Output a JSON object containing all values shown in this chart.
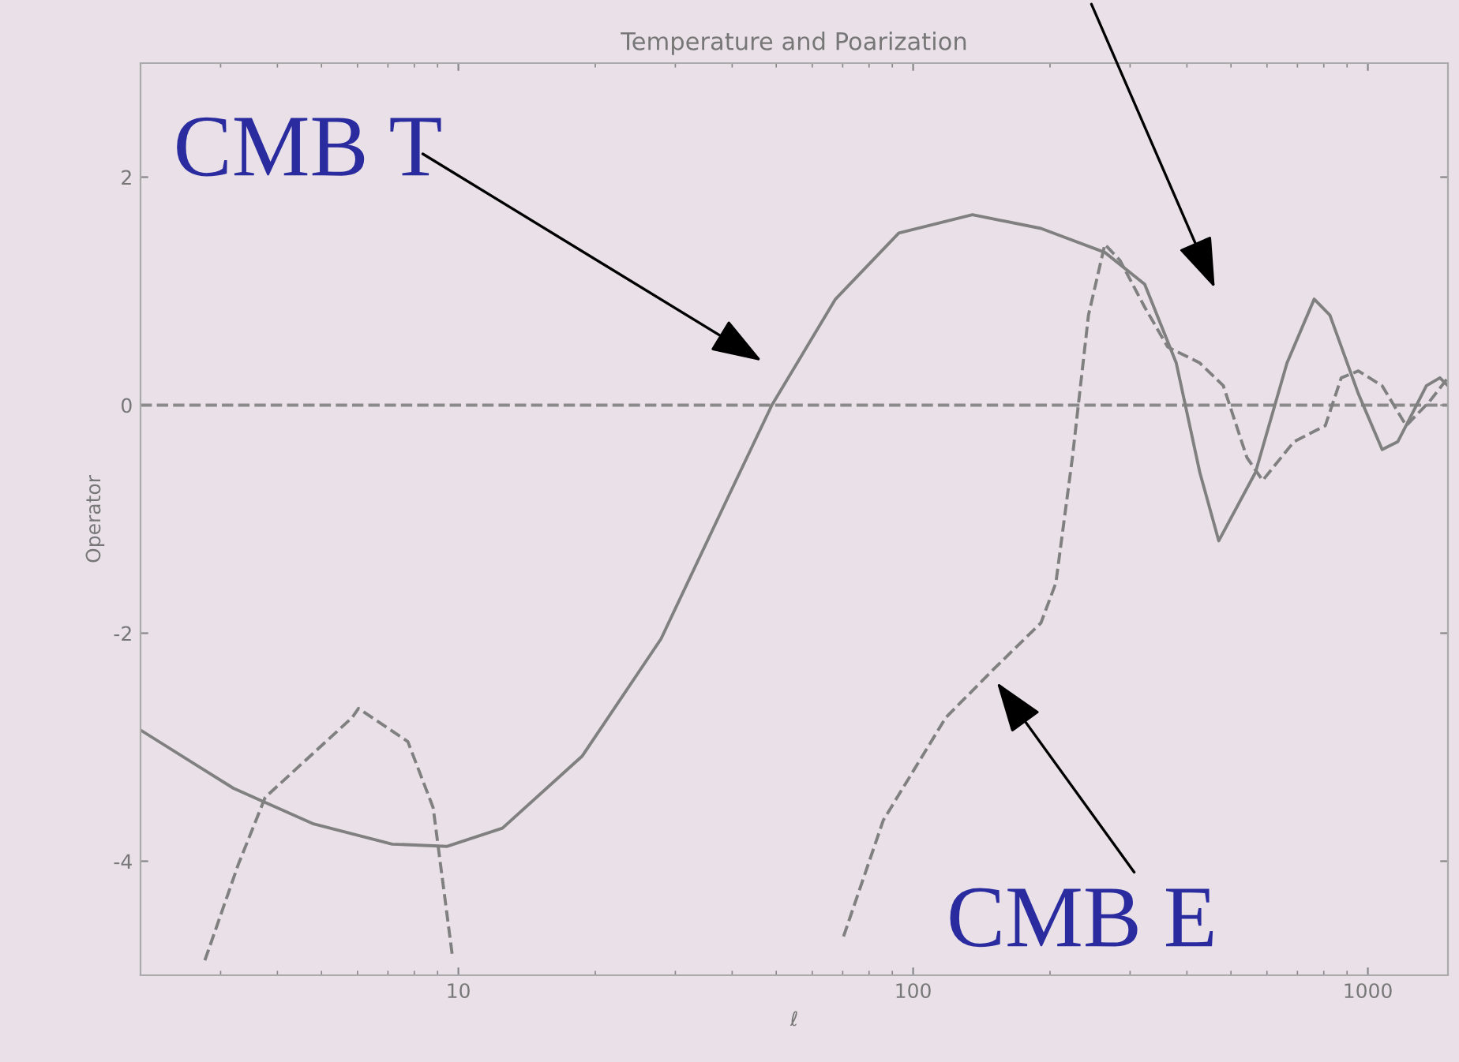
{
  "chart_data": {
    "type": "line",
    "title": "Temperature and Poarization",
    "xlabel": "ℓ",
    "ylabel": "Operator",
    "log": "x",
    "xlim": [
      2,
      1500
    ],
    "xticks": [
      10,
      100,
      1000
    ],
    "ylim": [
      -5,
      3
    ],
    "yticks": [
      -4,
      -2,
      0,
      2
    ],
    "grid": false,
    "legend": false,
    "marker": "none",
    "ref_lines": [
      {
        "axis": "y",
        "value": 0,
        "color": "#8a8a8a",
        "line_style": "dashed"
      }
    ],
    "annotations": [
      "CMB T",
      "CMB E"
    ],
    "series": [
      {
        "color": "#808080",
        "line_style": "solid",
        "x": [
          2,
          3.2,
          4.78,
          7.15,
          9.45,
          12.5,
          18.7,
          27.9,
          38.5,
          48.9,
          67.5,
          93,
          135,
          191,
          264,
          323,
          379,
          427,
          470,
          566,
          664,
          762,
          825,
          953,
          1075,
          1164,
          1345,
          1440,
          1500
        ],
        "values": [
          -2.85,
          -3.36,
          -3.67,
          -3.85,
          -3.87,
          -3.71,
          -3.08,
          -2.05,
          -0.87,
          0,
          0.93,
          1.51,
          1.67,
          1.55,
          1.34,
          1.06,
          0.37,
          -0.59,
          -1.19,
          -0.59,
          0.37,
          0.93,
          0.79,
          0.1,
          -0.39,
          -0.32,
          0.17,
          0.24,
          0.17
        ]
      },
      {
        "color": "#808080",
        "line_style": "dashed",
        "x": [
          2.77,
          3.28,
          3.76,
          5.84,
          6.03,
          7.74,
          8.8,
          9.7,
          30,
          70.3,
          86,
          118,
          150,
          191,
          206,
          224,
          243,
          264,
          285,
          323,
          363,
          427,
          481,
          542,
          587,
          688,
          806,
          874,
          953,
          1075,
          1214,
          1365,
          1500
        ],
        "values": [
          -4.87,
          -4.03,
          -3.44,
          -2.74,
          -2.66,
          -2.95,
          -3.53,
          -4.83,
          null,
          -4.66,
          -3.64,
          -2.74,
          -2.32,
          -1.91,
          -1.56,
          -0.46,
          0.79,
          1.41,
          1.27,
          0.86,
          0.51,
          0.37,
          0.17,
          -0.46,
          -0.66,
          -0.32,
          -0.18,
          0.24,
          0.3,
          0.17,
          -0.18,
          0.03,
          0.24
        ]
      }
    ]
  }
}
